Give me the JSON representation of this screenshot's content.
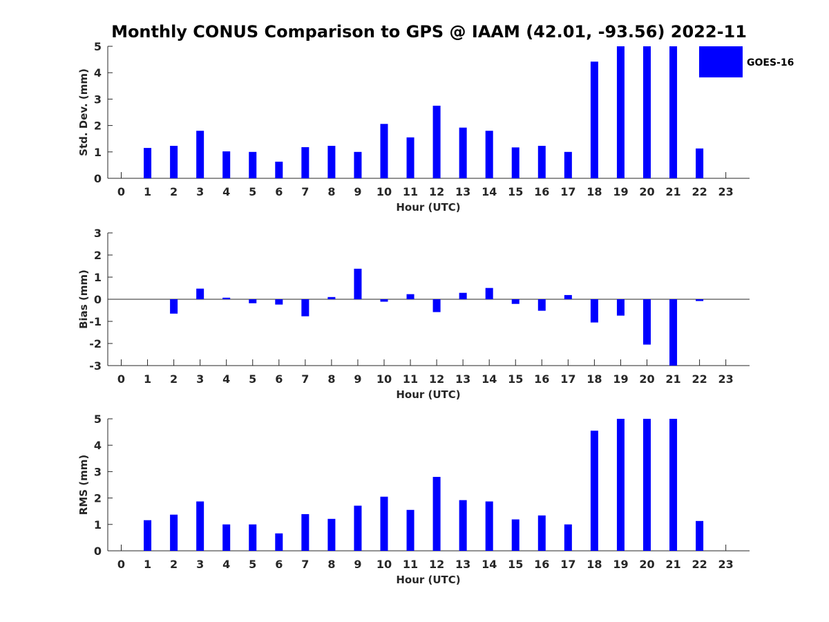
{
  "chart_data": {
    "title": "Monthly CONUS Comparison to GPS @ IAAM (42.01, -93.56) 2022-11",
    "type": "bar",
    "legend": {
      "entries": [
        "GOES-16"
      ],
      "placement": "top-right",
      "color": "#0000ff"
    },
    "series_color": "#0000ff",
    "categories": [
      "0",
      "1",
      "2",
      "3",
      "4",
      "5",
      "6",
      "7",
      "8",
      "9",
      "10",
      "11",
      "12",
      "13",
      "14",
      "15",
      "16",
      "17",
      "18",
      "19",
      "20",
      "21",
      "22",
      "23"
    ],
    "panels": [
      {
        "id": "std",
        "type": "bar",
        "ylabel": "Std. Dev. (mm)",
        "xlabel": "Hour (UTC)",
        "ylim": [
          0,
          5
        ],
        "yticks": [
          "0",
          "1",
          "2",
          "3",
          "4",
          "5"
        ],
        "series": [
          {
            "name": "GOES-16",
            "values": [
              null,
              1.15,
              1.23,
              1.8,
              1.02,
              1.0,
              0.63,
              1.18,
              1.23,
              1.0,
              2.06,
              1.55,
              2.75,
              1.92,
              1.8,
              1.17,
              1.23,
              1.0,
              4.42,
              5.0,
              5.0,
              5.0,
              1.13,
              null
            ]
          }
        ]
      },
      {
        "id": "bias",
        "type": "bar",
        "ylabel": "Bias (mm)",
        "xlabel": "Hour (UTC)",
        "ylim": [
          -3,
          3
        ],
        "yticks": [
          "-3",
          "-2",
          "-1",
          "0",
          "1",
          "2",
          "3"
        ],
        "series": [
          {
            "name": "GOES-16",
            "values": [
              null,
              0.0,
              -0.65,
              0.48,
              0.07,
              -0.18,
              -0.24,
              -0.77,
              0.1,
              1.38,
              -0.11,
              0.23,
              -0.58,
              0.29,
              0.51,
              -0.21,
              -0.52,
              0.19,
              -1.05,
              -0.74,
              -2.05,
              -3.0,
              -0.08,
              null
            ]
          }
        ]
      },
      {
        "id": "rms",
        "type": "bar",
        "ylabel": "RMS (mm)",
        "xlabel": "Hour (UTC)",
        "ylim": [
          0,
          5
        ],
        "yticks": [
          "0",
          "1",
          "2",
          "3",
          "4",
          "5"
        ],
        "series": [
          {
            "name": "GOES-16",
            "values": [
              null,
              1.16,
              1.37,
              1.87,
              1.0,
              1.0,
              0.66,
              1.39,
              1.21,
              1.71,
              2.05,
              1.55,
              2.8,
              1.92,
              1.87,
              1.19,
              1.34,
              1.0,
              4.55,
              5.0,
              5.0,
              5.0,
              1.13,
              null
            ]
          }
        ]
      }
    ]
  }
}
